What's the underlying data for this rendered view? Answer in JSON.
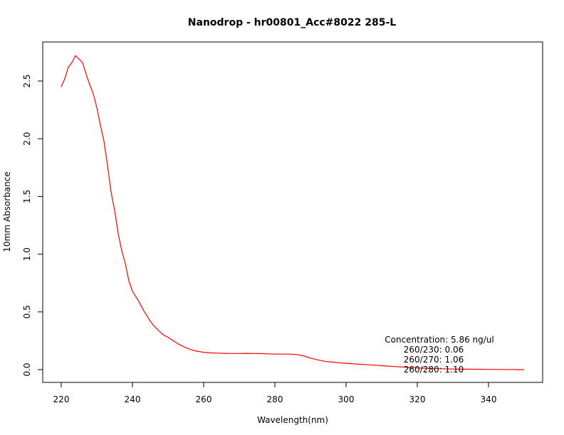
{
  "chart_data": {
    "type": "line",
    "title": "Nanodrop - hr00801_Acc#8022 285-L",
    "xlabel": "Wavelength(nm)",
    "ylabel": "10mm Absorbance",
    "xlim": [
      220,
      350
    ],
    "ylim": [
      0.0,
      2.7
    ],
    "xticks": [
      220,
      240,
      260,
      280,
      300,
      320,
      340
    ],
    "xtick_labels": [
      "220",
      "240",
      "260",
      "280",
      "300",
      "320",
      "340"
    ],
    "yticks": [
      0.0,
      0.5,
      1.0,
      1.5,
      2.0,
      2.5
    ],
    "ytick_labels": [
      "0.0",
      "0.5",
      "1.0",
      "1.5",
      "2.0",
      "2.5"
    ],
    "grid": false,
    "colors": {
      "line": "#ff0000",
      "axes": "#000000"
    },
    "series": [
      {
        "x": [
          220,
          221,
          222,
          223,
          224,
          225,
          226,
          227,
          228,
          229,
          230,
          231,
          232,
          233,
          234,
          235,
          236,
          237,
          238,
          239,
          240,
          241,
          242,
          243,
          244,
          245,
          246,
          247,
          248,
          249,
          250,
          251,
          252,
          253,
          254,
          255,
          256,
          257,
          258,
          259,
          260,
          262,
          264,
          266,
          268,
          270,
          272,
          274,
          276,
          278,
          280,
          282,
          284,
          286,
          288,
          290,
          292,
          294,
          296,
          298,
          300,
          302,
          304,
          306,
          308,
          310,
          312,
          314,
          316,
          318,
          320,
          322,
          324,
          326,
          328,
          330,
          332,
          334,
          336,
          338,
          340,
          342,
          344,
          346,
          348,
          350
        ],
        "y": [
          2.45,
          2.52,
          2.62,
          2.66,
          2.72,
          2.69,
          2.66,
          2.56,
          2.47,
          2.39,
          2.27,
          2.12,
          1.98,
          1.77,
          1.54,
          1.38,
          1.18,
          1.03,
          0.92,
          0.77,
          0.68,
          0.63,
          0.58,
          0.52,
          0.47,
          0.42,
          0.38,
          0.35,
          0.32,
          0.295,
          0.28,
          0.26,
          0.24,
          0.22,
          0.205,
          0.19,
          0.178,
          0.168,
          0.16,
          0.155,
          0.15,
          0.145,
          0.143,
          0.141,
          0.14,
          0.14,
          0.141,
          0.14,
          0.139,
          0.137,
          0.135,
          0.134,
          0.134,
          0.131,
          0.12,
          0.1,
          0.085,
          0.072,
          0.065,
          0.06,
          0.055,
          0.05,
          0.046,
          0.042,
          0.038,
          0.034,
          0.03,
          0.026,
          0.022,
          0.018,
          0.015,
          0.012,
          0.01,
          0.008,
          0.006,
          0.005,
          0.004,
          0.004,
          0.003,
          0.003,
          0.002,
          0.002,
          0.001,
          0.001,
          0.0,
          0.0
        ]
      }
    ],
    "annotations": [
      "Concentration: 5.86 ng/ul",
      "260/230: 0.06",
      "260/270: 1.06",
      "260/280: 1.10"
    ]
  }
}
